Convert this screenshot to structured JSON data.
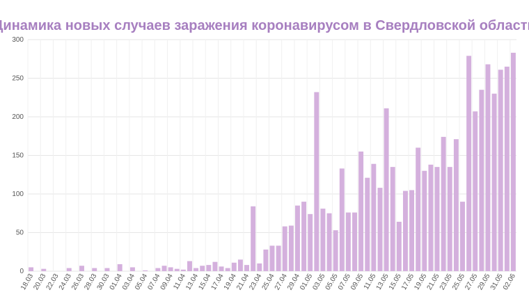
{
  "chart_data": {
    "type": "bar",
    "title": "Динамика новых случаев заражения коронавирусом в Свердловской области",
    "categories": [
      "18.03",
      null,
      "20.03",
      null,
      "22.03",
      null,
      "24.03",
      null,
      "26.03",
      null,
      "28.03",
      null,
      "30.03",
      null,
      "01.04",
      null,
      "03.04",
      null,
      "05.04",
      null,
      "07.04",
      null,
      "09.04",
      null,
      "11.04",
      null,
      "13.04",
      null,
      "15.04",
      null,
      "17.04",
      null,
      "19.04",
      null,
      "21.04",
      null,
      "23.04",
      null,
      "25.04",
      null,
      "27.04",
      null,
      "29.04",
      null,
      "01.05",
      null,
      "03.05",
      null,
      "05.05",
      null,
      "07.05",
      null,
      "09.05",
      null,
      "11.05",
      null,
      "13.05",
      null,
      "15.05",
      null,
      "17.05",
      null,
      "19.05",
      null,
      "21.05",
      null,
      "23.05",
      null,
      "25.05",
      null,
      "27.05",
      null,
      "29.05",
      null,
      "31.05",
      null,
      "02.06"
    ],
    "values": [
      5,
      0,
      3,
      0,
      0,
      0,
      4,
      0,
      7,
      0,
      4,
      0,
      4,
      0,
      9,
      0,
      5,
      0,
      1,
      0,
      4,
      7,
      5,
      3,
      2,
      13,
      4,
      7,
      8,
      12,
      6,
      4,
      11,
      15,
      8,
      84,
      10,
      28,
      33,
      33,
      58,
      59,
      85,
      90,
      74,
      232,
      81,
      75,
      53,
      133,
      76,
      76,
      155,
      121,
      139,
      108,
      211,
      135,
      64,
      104,
      105,
      160,
      130,
      138,
      135,
      174,
      135,
      171,
      90,
      279,
      207,
      235,
      268,
      230,
      261,
      265,
      283
    ],
    "color": "#d4b0dd",
    "ylim": [
      0,
      300
    ],
    "yticks": [
      0,
      50,
      100,
      150,
      200,
      250,
      300
    ],
    "grid": true
  }
}
